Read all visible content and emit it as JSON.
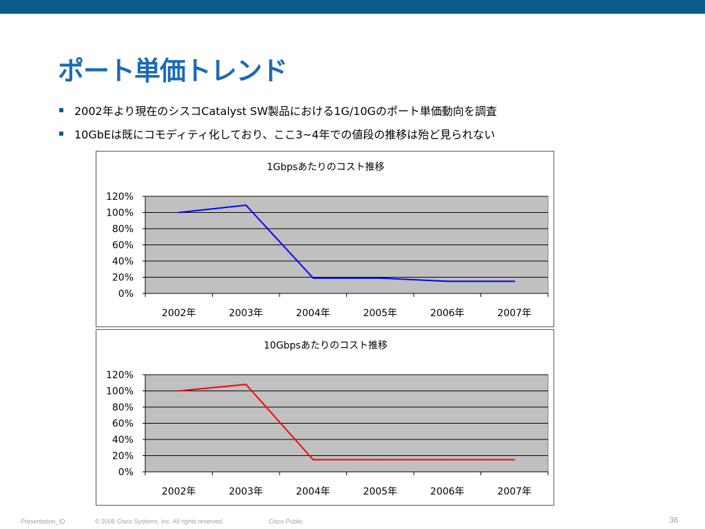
{
  "slide": {
    "title": "ポート単価トレンド",
    "bullets": [
      "2002年より現在のシスコCatalyst SW製品における1G/10Gのポート単価動向を調査",
      "10GbEは既にコモディティ化しており、ここ3~4年での値段の推移は殆ど見られない"
    ]
  },
  "footer": {
    "presentation_id": "Presentation_ID",
    "copyright": "© 2006 Cisco Systems, Inc. All rights reserved.",
    "classification": "Cisco Public",
    "page_number": "36"
  },
  "colors": {
    "top_bar": "#0b5c8b",
    "title": "#1a6bb5",
    "plot_background": "#c0c0c0"
  },
  "chart_data": [
    {
      "type": "line",
      "title": "1Gbpsあたりのコスト推移",
      "categories": [
        "2002年",
        "2003年",
        "2004年",
        "2005年",
        "2006年",
        "2007年"
      ],
      "series": [
        {
          "values": [
            100,
            109,
            19,
            19,
            15,
            15
          ],
          "color": "#0000ff"
        }
      ],
      "ylim": [
        0,
        120
      ],
      "yticks": [
        "0%",
        "20%",
        "40%",
        "60%",
        "80%",
        "100%",
        "120%"
      ],
      "grid": true,
      "legend": "none"
    },
    {
      "type": "line",
      "title": "10Gbpsあたりのコスト推移",
      "categories": [
        "2002年",
        "2003年",
        "2004年",
        "2005年",
        "2006年",
        "2007年"
      ],
      "series": [
        {
          "values": [
            100,
            108,
            15,
            15,
            15,
            15
          ],
          "color": "#ff0000"
        }
      ],
      "ylim": [
        0,
        120
      ],
      "yticks": [
        "0%",
        "20%",
        "40%",
        "60%",
        "80%",
        "100%",
        "120%"
      ],
      "grid": true,
      "legend": "none"
    }
  ]
}
